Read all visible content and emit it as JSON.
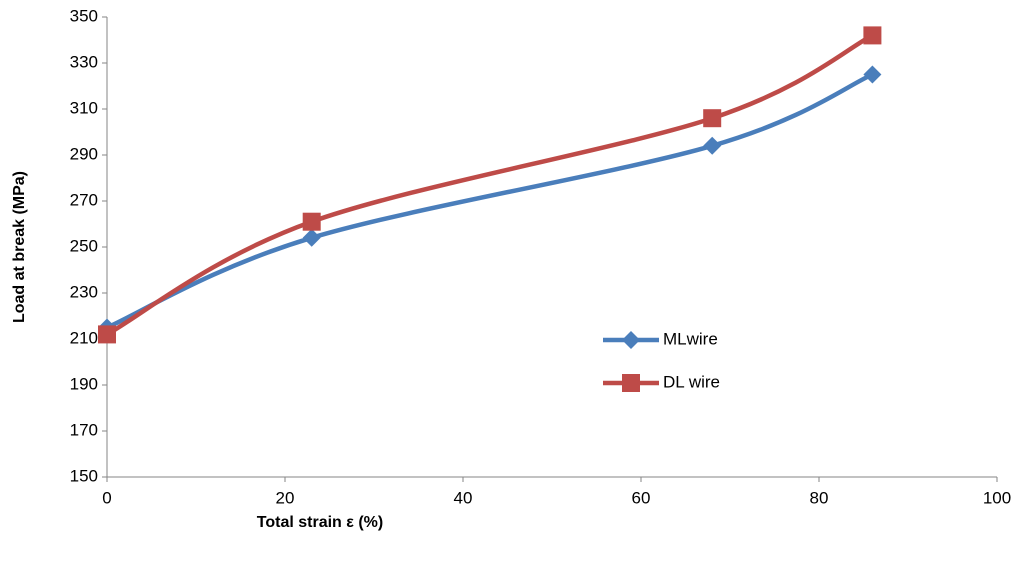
{
  "chart_data": {
    "type": "line",
    "smooth": true,
    "x_label": "Total strain ε  (%)",
    "y_label": "Load at break  (MPa)",
    "x": [
      0,
      23,
      68,
      86
    ],
    "series": [
      {
        "name": "MLwire",
        "color": "#4a7ebb",
        "marker": "diamond",
        "values": [
          215,
          254,
          294,
          325
        ]
      },
      {
        "name": "DL wire",
        "color": "#be4b48",
        "marker": "square",
        "values": [
          212,
          261,
          306,
          342
        ]
      }
    ],
    "xlim": [
      0,
      100
    ],
    "xticks": [
      0,
      20,
      40,
      60,
      80,
      100
    ],
    "ylim": [
      150,
      350
    ],
    "yticks": [
      150,
      170,
      190,
      210,
      230,
      250,
      270,
      290,
      310,
      330,
      350
    ],
    "grid": false
  }
}
